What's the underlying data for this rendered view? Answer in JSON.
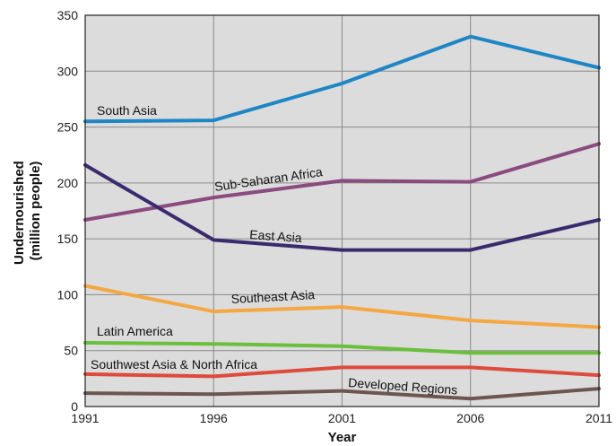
{
  "chart_data": {
    "type": "line",
    "title": "",
    "xlabel": "Year",
    "ylabel_lines": [
      "Undernourished",
      "(million people)"
    ],
    "x": [
      1991,
      1996,
      2001,
      2006,
      2011
    ],
    "xticks": [
      "1991",
      "1996",
      "2001",
      "2006",
      "2011"
    ],
    "ylim": [
      0,
      350
    ],
    "yticks": [
      "0",
      "50",
      "100",
      "150",
      "200",
      "250",
      "300",
      "350"
    ],
    "grid": true,
    "plot_background": "#dcdcdc",
    "series": [
      {
        "name": "South Asia",
        "color": "#1f86c6",
        "values": [
          255,
          256,
          289,
          331,
          303
        ]
      },
      {
        "name": "Sub-Saharan Africa",
        "color": "#8b4b7e",
        "values": [
          167,
          187,
          202,
          201,
          235
        ]
      },
      {
        "name": "East Asia",
        "color": "#3b2a6e",
        "values": [
          216,
          149,
          140,
          140,
          167
        ]
      },
      {
        "name": "Southeast Asia",
        "color": "#f5a742",
        "values": [
          108,
          85,
          89,
          77,
          71
        ]
      },
      {
        "name": "Latin America",
        "color": "#6abf3c",
        "values": [
          57,
          56,
          54,
          48,
          48
        ]
      },
      {
        "name": "Southwest Asia & North Africa",
        "color": "#de4a3c",
        "values": [
          29,
          27,
          35,
          35,
          28
        ]
      },
      {
        "name": "Developed Regions",
        "color": "#6e5650",
        "values": [
          12,
          11,
          14,
          7,
          16
        ]
      }
    ]
  }
}
